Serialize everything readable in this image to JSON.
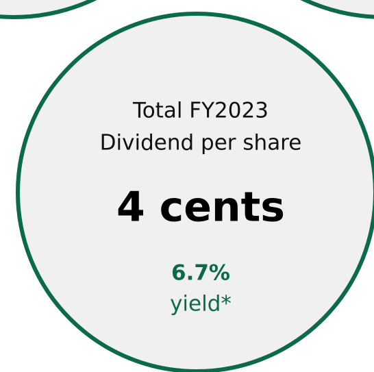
{
  "card": {
    "label_lines": [
      "Total FY2023",
      "Dividend per share"
    ],
    "value": "4 cents",
    "yield_value": "6.7%",
    "yield_label": "yield*"
  }
}
